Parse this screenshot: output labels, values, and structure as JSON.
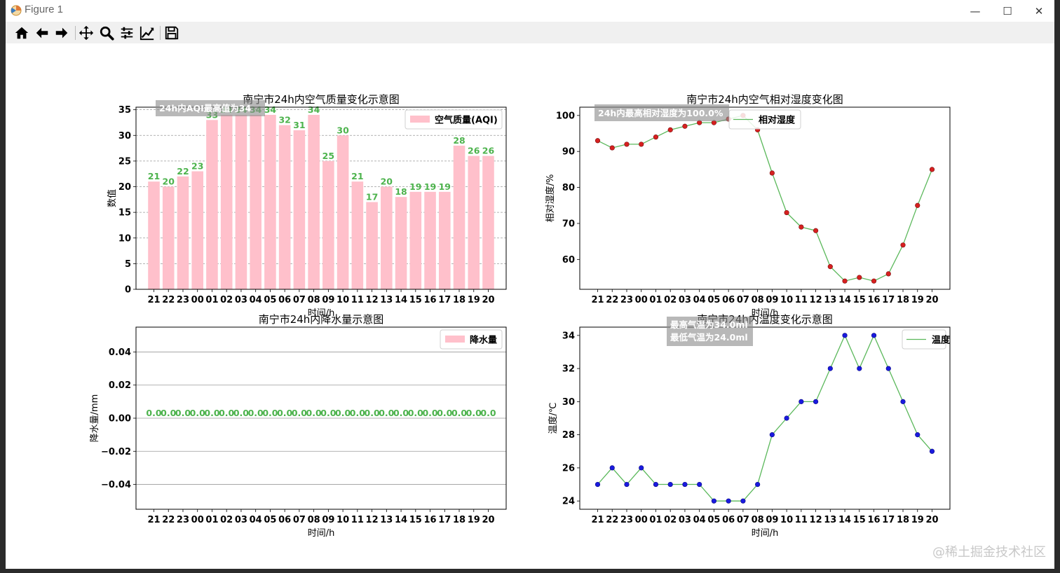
{
  "window": {
    "title": "Figure 1",
    "controls": [
      "—",
      "☐",
      "✕"
    ]
  },
  "toolbar": {
    "buttons": [
      "home-icon",
      "back-icon",
      "forward-icon",
      "pan-icon",
      "zoom-icon",
      "configure-subplots-icon",
      "edit-axis-icon",
      "save-icon"
    ]
  },
  "watermark": "@稀土掘金技术社区",
  "colors": {
    "bar": "#ffc0cb",
    "line": "#5bb85b",
    "label": "#4db34d",
    "humidity_marker": "#d62020",
    "temp_marker": "#1a1adf"
  },
  "chart_data": [
    {
      "type": "bar",
      "title": "南宁市24h内空气质量变化示意图",
      "xlabel": "时间/h",
      "ylabel": "数值",
      "categories": [
        "21",
        "22",
        "23",
        "00",
        "01",
        "02",
        "03",
        "04",
        "05",
        "06",
        "07",
        "08",
        "09",
        "10",
        "11",
        "12",
        "13",
        "14",
        "15",
        "16",
        "17",
        "18",
        "19",
        "20"
      ],
      "series": [
        {
          "name": "空气质量(AQI)",
          "values": [
            21,
            20,
            22,
            23,
            33,
            34,
            34,
            34,
            34,
            32,
            31,
            34,
            25,
            30,
            21,
            17,
            20,
            18,
            19,
            19,
            19,
            28,
            26,
            26
          ]
        }
      ],
      "yticks": [
        "0",
        "5",
        "10",
        "15",
        "20",
        "25",
        "30",
        "35"
      ],
      "ylim": [
        0,
        35.5
      ],
      "grid": "y-dashed",
      "legend": "top-right",
      "annotation": "24h内AQI最高值为34"
    },
    {
      "type": "line",
      "title": "南宁市24h内空气相对湿度变化图",
      "xlabel": "时间/h",
      "ylabel": "相对湿度/%",
      "categories": [
        "21",
        "22",
        "23",
        "00",
        "01",
        "02",
        "03",
        "04",
        "05",
        "06",
        "07",
        "08",
        "09",
        "10",
        "11",
        "12",
        "13",
        "14",
        "15",
        "16",
        "17",
        "18",
        "19",
        "20"
      ],
      "series": [
        {
          "name": "相对湿度",
          "values": [
            93,
            91,
            92,
            92,
            94,
            96,
            97,
            98,
            98,
            99,
            100,
            96,
            84,
            73,
            69,
            68,
            58,
            54,
            55,
            54,
            56,
            64,
            75,
            85
          ]
        }
      ],
      "yticks": [
        "60",
        "70",
        "80",
        "90",
        "100"
      ],
      "ylim": [
        51.7,
        102.3
      ],
      "legend": "top-center",
      "annotation": "24h内最高相对湿度为100.0%"
    },
    {
      "type": "bar",
      "title": "南宁市24h内降水量示意图",
      "xlabel": "时间/h",
      "ylabel": "降水量/mm",
      "categories": [
        "21",
        "22",
        "23",
        "00",
        "01",
        "02",
        "03",
        "04",
        "05",
        "06",
        "07",
        "08",
        "09",
        "10",
        "11",
        "12",
        "13",
        "14",
        "15",
        "16",
        "17",
        "18",
        "19",
        "20"
      ],
      "series": [
        {
          "name": "降水量",
          "values": [
            0,
            0,
            0,
            0,
            0,
            0,
            0,
            0,
            0,
            0,
            0,
            0,
            0,
            0,
            0,
            0,
            0,
            0,
            0,
            0,
            0,
            0,
            0,
            0
          ]
        }
      ],
      "value_labels": [
        "0.0",
        "0.0",
        "0.0",
        "0.0",
        "0.0",
        "0.0",
        "0.0",
        "0.0",
        "0.0",
        "0.0",
        "0.0",
        "0.0",
        "0.0",
        "0.0",
        "0.0",
        "0.0",
        "0.0",
        "0.0",
        "0.0",
        "0.0",
        "0.0",
        "0.0",
        "0.0",
        "0.0"
      ],
      "yticks": [
        "0.04",
        "0.02",
        "0.00",
        "−0.02",
        "−0.04"
      ],
      "ytick_values": [
        0.04,
        0.02,
        0,
        -0.02,
        -0.04
      ],
      "ylim": [
        -0.055,
        0.055
      ],
      "grid": "y-solid",
      "legend": "top-right"
    },
    {
      "type": "line",
      "title": "南宁市24h内温度变化示意图",
      "xlabel": "时间/h",
      "ylabel": "温度/℃",
      "categories": [
        "21",
        "22",
        "23",
        "00",
        "01",
        "02",
        "03",
        "04",
        "05",
        "06",
        "07",
        "08",
        "09",
        "10",
        "11",
        "12",
        "13",
        "14",
        "15",
        "16",
        "17",
        "18",
        "19",
        "20"
      ],
      "series": [
        {
          "name": "温度",
          "values": [
            25,
            26,
            25,
            26,
            25,
            25,
            25,
            25,
            24,
            24,
            24,
            25,
            28,
            29,
            30,
            30,
            32,
            34,
            32,
            34,
            32,
            30,
            28,
            27
          ]
        }
      ],
      "yticks": [
        "24",
        "26",
        "28",
        "30",
        "32",
        "34"
      ],
      "ylim": [
        23.5,
        34.5
      ],
      "legend": "top-right",
      "annotation": [
        "最高气温为34.0ml",
        "最低气温为24.0ml"
      ]
    }
  ]
}
